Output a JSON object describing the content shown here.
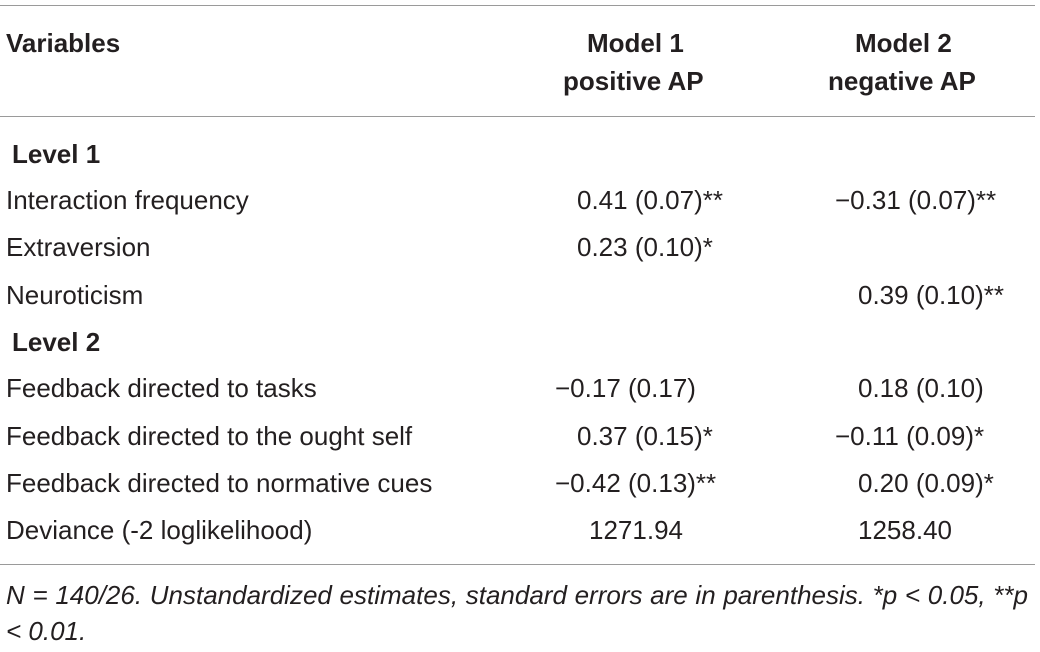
{
  "table": {
    "headers": {
      "variables": "Variables",
      "model1_line1": "Model 1",
      "model1_line2": "positive AP",
      "model2_line1": "Model 2",
      "model2_line2": "negative AP"
    },
    "sections": [
      {
        "title": "Level 1",
        "rows": [
          {
            "variable": "Interaction frequency",
            "model1": "0.41 (0.07)**",
            "model2": "−0.31 (0.07)**"
          },
          {
            "variable": "Extraversion",
            "model1": "0.23 (0.10)*",
            "model2": ""
          },
          {
            "variable": "Neuroticism",
            "model1": "",
            "model2": "0.39 (0.10)**"
          }
        ]
      },
      {
        "title": "Level 2",
        "rows": [
          {
            "variable": "Feedback directed to tasks",
            "model1": "−0.17 (0.17)",
            "model2": "0.18 (0.10)"
          },
          {
            "variable": "Feedback directed to the ought self",
            "model1": "0.37 (0.15)*",
            "model2": "−0.11 (0.09)*"
          },
          {
            "variable": "Feedback directed to normative cues",
            "model1": "−0.42 (0.13)**",
            "model2": "0.20 (0.09)*"
          },
          {
            "variable": "Deviance (-2 loglikelihood)",
            "model1": "1271.94",
            "model2": "1258.40"
          }
        ]
      }
    ]
  },
  "footnote": "N = 140/26. Unstandardized estimates, standard errors are in parenthesis. *p < 0.05, **p < 0.01."
}
